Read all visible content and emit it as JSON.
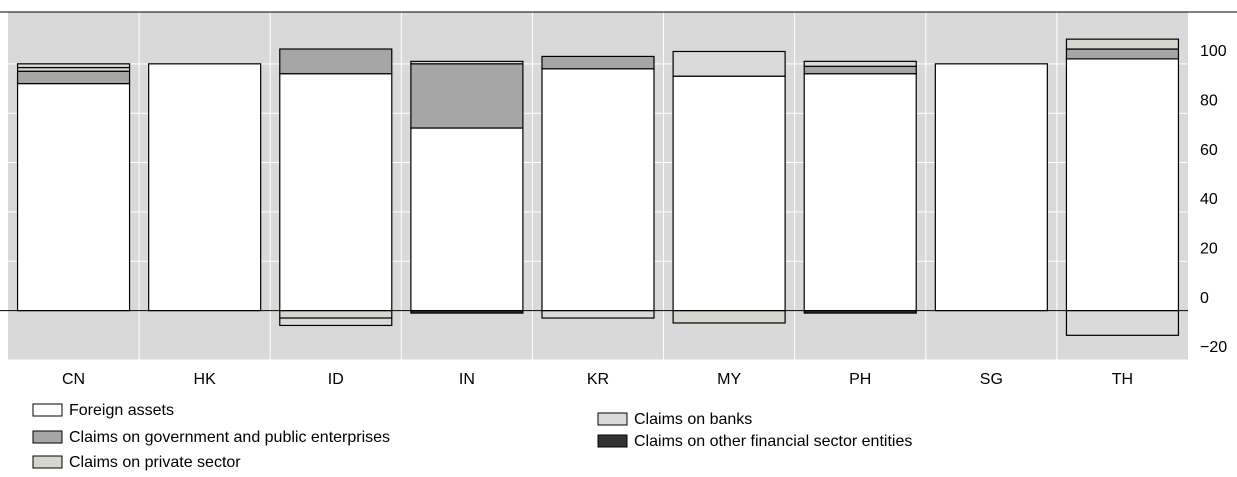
{
  "chart_data": {
    "type": "stacked_bar",
    "categories": [
      "CN",
      "HK",
      "ID",
      "IN",
      "KR",
      "MY",
      "PH",
      "SG",
      "TH"
    ],
    "series": [
      {
        "name": "Foreign assets",
        "color": "#ffffff",
        "values": [
          92,
          100,
          96,
          74,
          98,
          95,
          96,
          100,
          102
        ]
      },
      {
        "name": "Claims on government and public enterprises",
        "color": "#a6a6a6",
        "values": [
          5,
          0,
          10,
          26,
          5,
          0,
          3,
          0,
          4
        ]
      },
      {
        "name": "Claims on private sector",
        "color": "#d6d6cc",
        "values": [
          1.5,
          0,
          -3,
          1,
          0,
          -5,
          0,
          0,
          4
        ]
      },
      {
        "name": "Claims on banks",
        "color": "#dadada",
        "values": [
          1.5,
          0,
          -3,
          0,
          -3,
          10,
          2,
          0,
          -10
        ]
      },
      {
        "name": "Claims on other financial sector entities",
        "color": "#333333",
        "values": [
          0,
          0,
          0,
          -1,
          0,
          0,
          -1,
          0,
          0
        ]
      }
    ],
    "ylim": [
      -20,
      121
    ],
    "yticks": [
      {
        "value": -20,
        "label": "−20"
      },
      0,
      20,
      40,
      60,
      80,
      100
    ],
    "grid": true
  }
}
